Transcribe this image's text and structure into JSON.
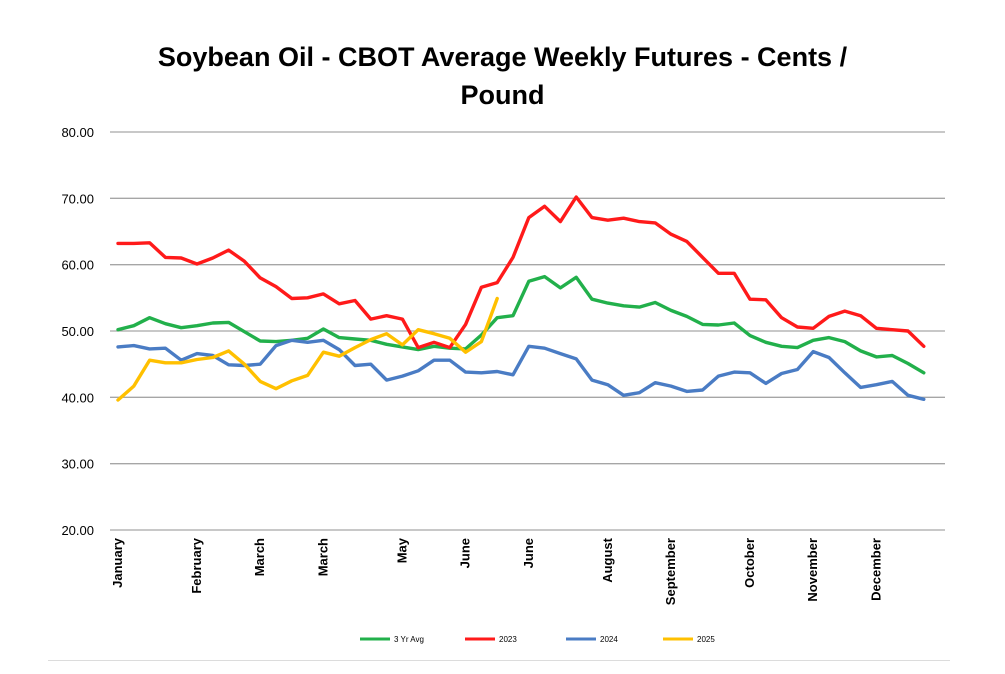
{
  "chart_data": {
    "type": "line",
    "title_lines": [
      "Soybean Oil - CBOT Average Weekly Futures - Cents /",
      "Pound"
    ],
    "ylim": [
      20,
      80
    ],
    "yticks": [
      "20.00",
      "30.00",
      "40.00",
      "50.00",
      "60.00",
      "70.00",
      "80.00"
    ],
    "grid": true,
    "legend_position": "bottom",
    "month_labels": [
      {
        "label": "January",
        "week": 0
      },
      {
        "label": "February",
        "week": 5
      },
      {
        "label": "March",
        "week": 9
      },
      {
        "label": "March",
        "week": 13
      },
      {
        "label": "May",
        "week": 18
      },
      {
        "label": "June",
        "week": 22
      },
      {
        "label": "June",
        "week": 26
      },
      {
        "label": "August",
        "week": 31
      },
      {
        "label": "September",
        "week": 35
      },
      {
        "label": "October",
        "week": 40
      },
      {
        "label": "November",
        "week": 44
      },
      {
        "label": "December",
        "week": 48
      }
    ],
    "series": [
      {
        "name": "3 Yr Avg",
        "color": "#22b04b",
        "values": [
          50.2,
          50.8,
          52.0,
          51.1,
          50.5,
          50.8,
          51.2,
          51.3,
          49.9,
          48.5,
          48.4,
          48.6,
          48.9,
          50.3,
          49.0,
          48.8,
          48.6,
          48.0,
          47.6,
          47.2,
          47.7,
          47.4,
          47.3,
          49.4,
          52.0,
          52.3,
          57.5,
          58.2,
          56.5,
          58.1,
          54.8,
          54.2,
          53.8,
          53.6,
          54.3,
          53.1,
          52.2,
          51.0,
          50.9,
          51.2,
          49.3,
          48.3,
          47.7,
          47.5,
          48.6,
          49.0,
          48.4,
          47.0,
          46.1,
          46.3,
          45.1,
          43.7
        ]
      },
      {
        "name": "2023",
        "color": "#ff1a1a",
        "values": [
          63.2,
          63.2,
          63.3,
          61.1,
          61.0,
          60.1,
          61.0,
          62.2,
          60.5,
          58.0,
          56.7,
          54.9,
          55.0,
          55.6,
          54.1,
          54.6,
          51.8,
          52.3,
          51.8,
          47.5,
          48.3,
          47.5,
          51.0,
          56.6,
          57.3,
          61.1,
          67.1,
          68.8,
          66.5,
          70.2,
          67.1,
          66.7,
          67.0,
          66.5,
          66.3,
          64.6,
          63.5,
          61.1,
          58.7,
          58.7,
          54.8,
          54.7,
          52.0,
          50.6,
          50.4,
          52.2,
          53.0,
          52.3,
          50.4,
          50.2,
          50.0,
          47.7
        ]
      },
      {
        "name": "2024",
        "color": "#4a7cc4",
        "values": [
          47.6,
          47.8,
          47.3,
          47.4,
          45.6,
          46.6,
          46.3,
          44.9,
          44.8,
          45.0,
          47.8,
          48.6,
          48.3,
          48.6,
          47.2,
          44.8,
          45.0,
          42.6,
          43.2,
          44.0,
          45.6,
          45.6,
          43.8,
          43.7,
          43.9,
          43.4,
          47.7,
          47.4,
          46.6,
          45.8,
          42.6,
          41.9,
          40.3,
          40.7,
          42.2,
          41.7,
          40.9,
          41.1,
          43.2,
          43.8,
          43.7,
          42.1,
          43.6,
          44.2,
          46.9,
          46.0,
          43.7,
          41.5,
          41.9,
          42.4,
          40.3,
          39.7
        ]
      },
      {
        "name": "2025",
        "color": "#ffc000",
        "values": [
          39.6,
          41.7,
          45.6,
          45.2,
          45.2,
          45.7,
          46.0,
          47.0,
          45.0,
          42.4,
          41.3,
          42.5,
          43.3,
          46.8,
          46.2,
          47.5,
          48.7,
          49.6,
          47.9,
          50.2,
          49.6,
          48.9,
          46.8,
          48.4,
          54.9
        ]
      }
    ]
  }
}
